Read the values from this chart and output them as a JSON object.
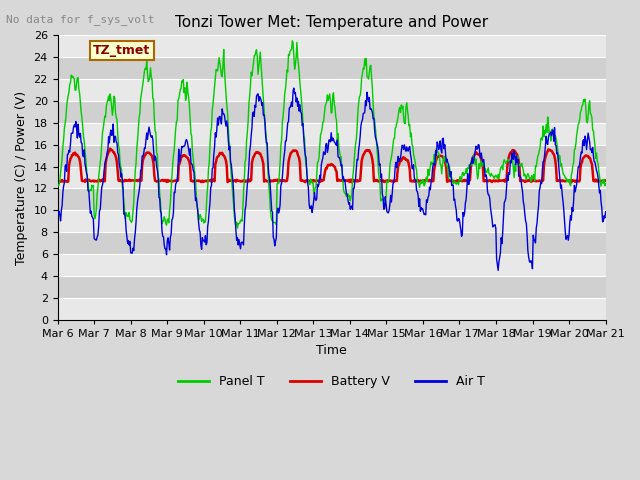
{
  "title": "Tonzi Tower Met: Temperature and Power",
  "xlabel": "Time",
  "ylabel": "Temperature (C) / Power (V)",
  "annotation_text": "No data for f_sys_volt",
  "legend_label_text": "TZ_tmet",
  "ylim": [
    0,
    26
  ],
  "yticks": [
    0,
    2,
    4,
    6,
    8,
    10,
    12,
    14,
    16,
    18,
    20,
    22,
    24,
    26
  ],
  "bg_color": "#d8d8d8",
  "plot_bg_color": "#d8d8d8",
  "grid_color": "#ffffff",
  "band_color_light": "#e0e0e0",
  "band_color_dark": "#c8c8c8",
  "line_green": "#00cc00",
  "line_red": "#dd0000",
  "line_blue": "#0000dd",
  "legend_entries": [
    "Panel T",
    "Battery V",
    "Air T"
  ],
  "x_tick_labels": [
    "Mar 6",
    "Mar 7",
    "Mar 8",
    "Mar 9",
    "Mar 10",
    "Mar 11",
    "Mar 12",
    "Mar 13",
    "Mar 14",
    "Mar 15",
    "Mar 16",
    "Mar 17",
    "Mar 18",
    "Mar 19",
    "Mar 20",
    "Mar 21"
  ],
  "n_days": 15,
  "title_fontsize": 11,
  "label_fontsize": 9,
  "tick_fontsize": 8,
  "legend_fontsize": 9
}
